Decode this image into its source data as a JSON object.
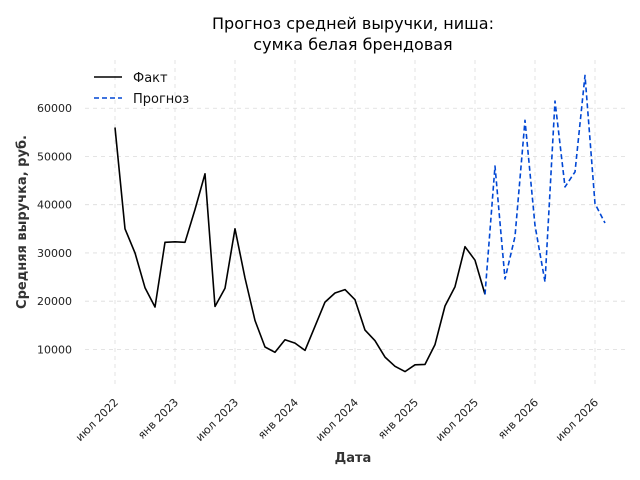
{
  "chart_data": {
    "type": "line",
    "title_lines": [
      "Прогноз средней выручки, ниша:",
      "сумка белая брендовая"
    ],
    "xlabel": "Дата",
    "ylabel": "Средняя выручка, руб.",
    "x_tick_labels": [
      "июл 2022",
      "янв 2023",
      "июл 2023",
      "янв 2024",
      "июл 2024",
      "янв 2025",
      "июл 2025",
      "янв 2026",
      "июл 2026"
    ],
    "y_tick_labels": [
      "10000",
      "20000",
      "30000",
      "40000",
      "50000",
      "60000"
    ],
    "y_ticks": [
      10000,
      20000,
      30000,
      40000,
      50000,
      60000
    ],
    "ylim": [
      2000,
      70000
    ],
    "grid": true,
    "legend_position": "top-left",
    "series": [
      {
        "name": "Факт",
        "style": "solid",
        "color": "#000000",
        "x": [
          "2022-07",
          "2022-08",
          "2022-09",
          "2022-10",
          "2022-11",
          "2022-12",
          "2023-01",
          "2023-02",
          "2023-03",
          "2023-04",
          "2023-05",
          "2023-06",
          "2023-07",
          "2023-08",
          "2023-09",
          "2023-10",
          "2023-11",
          "2023-12",
          "2024-01",
          "2024-02",
          "2024-03",
          "2024-04",
          "2024-05",
          "2024-06",
          "2024-07",
          "2024-08",
          "2024-09",
          "2024-10",
          "2024-11",
          "2024-12",
          "2025-01",
          "2025-02",
          "2025-03",
          "2025-04",
          "2025-05",
          "2025-06",
          "2025-07",
          "2025-08"
        ],
        "values": [
          56000,
          35000,
          30000,
          22800,
          18800,
          32200,
          32300,
          32200,
          39000,
          46400,
          18900,
          22700,
          35000,
          24800,
          16000,
          10500,
          9400,
          12000,
          11300,
          9800,
          14800,
          19800,
          21700,
          22400,
          20300,
          14000,
          11800,
          8400,
          6500,
          5400,
          6800,
          6900,
          11000,
          19000,
          23000,
          31300,
          28500,
          21400
        ]
      },
      {
        "name": "Прогноз",
        "style": "dashed",
        "color": "#0047d4",
        "x": [
          "2025-08",
          "2025-09",
          "2025-10",
          "2025-11",
          "2025-12",
          "2026-01",
          "2026-02",
          "2026-03",
          "2026-04",
          "2026-05",
          "2026-06",
          "2026-07",
          "2026-08"
        ],
        "values": [
          21400,
          48000,
          24600,
          33400,
          57500,
          35700,
          24000,
          61500,
          43700,
          46800,
          66800,
          40200,
          36200
        ]
      }
    ]
  }
}
